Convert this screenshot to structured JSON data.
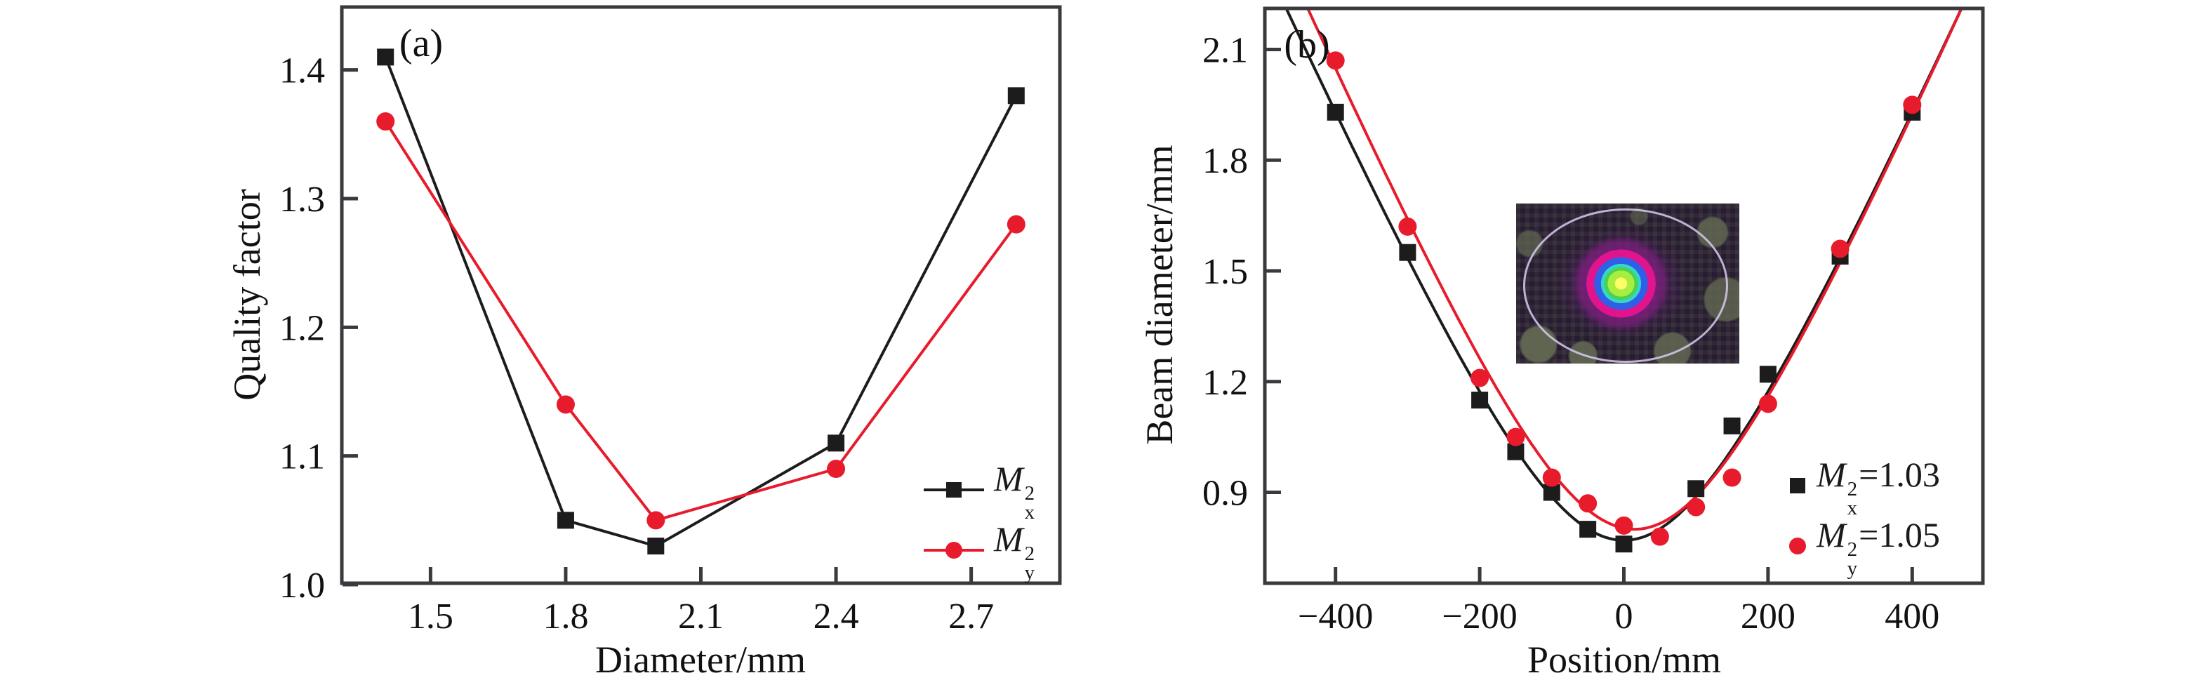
{
  "figure": {
    "panels": [
      "(a)",
      "(b)"
    ],
    "colors": {
      "black_series": "#1c1c1c",
      "red_series": "#e81b2c",
      "frame": "#3a3a3e",
      "background": "#ffffff"
    }
  },
  "chart_data": [
    {
      "type": "line",
      "panel_label": "(a)",
      "xlabel": "Diameter/mm",
      "ylabel": "Quality factor",
      "xlim": [
        1.3,
        2.9
      ],
      "ylim": [
        1.0,
        1.45
      ],
      "xticks": [
        1.5,
        1.8,
        2.1,
        2.4,
        2.7
      ],
      "yticks": [
        1.0,
        1.1,
        1.2,
        1.3,
        1.4
      ],
      "grid": false,
      "legend_position": "lower right",
      "series": [
        {
          "name": "Mx2",
          "label": {
            "base": "M",
            "sup": "2",
            "sub": "x"
          },
          "color": "#1c1c1c",
          "marker": "square",
          "x": [
            1.4,
            1.8,
            2.0,
            2.4,
            2.8
          ],
          "y": [
            1.41,
            1.05,
            1.03,
            1.11,
            1.38
          ]
        },
        {
          "name": "My2",
          "label": {
            "base": "M",
            "sup": "2",
            "sub": "y"
          },
          "color": "#e81b2c",
          "marker": "circle",
          "x": [
            1.4,
            1.8,
            2.0,
            2.4,
            2.8
          ],
          "y": [
            1.36,
            1.14,
            1.05,
            1.09,
            1.28
          ]
        }
      ]
    },
    {
      "type": "scatter-fit",
      "panel_label": "(b)",
      "xlabel": "Position/mm",
      "ylabel": "Beam diameter/mm",
      "xlim": [
        -500,
        500
      ],
      "ylim": [
        0.65,
        2.215
      ],
      "xticks": [
        -400,
        -200,
        0,
        200,
        400
      ],
      "yticks": [
        0.9,
        1.2,
        1.5,
        1.8,
        2.1
      ],
      "grid": false,
      "legend_position": "lower right",
      "inset": {
        "description": "beam intensity profile with aperture circle"
      },
      "series": [
        {
          "name": "Mx2",
          "label": {
            "base": "M",
            "sup": "2",
            "sub": "x",
            "suffix": "=1.03"
          },
          "color": "#1c1c1c",
          "marker": "square",
          "x": [
            -400,
            -300,
            -200,
            -150,
            -100,
            -50,
            0,
            100,
            150,
            200,
            300,
            400
          ],
          "y": [
            1.93,
            1.55,
            1.15,
            1.01,
            0.9,
            0.8,
            0.76,
            0.91,
            1.08,
            1.22,
            1.54,
            1.93
          ],
          "fit": {
            "w0": 0.77,
            "z0": 0,
            "zR": 174
          }
        },
        {
          "name": "My2",
          "label": {
            "base": "M",
            "sup": "2",
            "sub": "y",
            "suffix": "=1.05"
          },
          "color": "#e81b2c",
          "marker": "circle",
          "x": [
            -400,
            -300,
            -200,
            -150,
            -100,
            -50,
            0,
            50,
            100,
            150,
            200,
            300,
            400
          ],
          "y": [
            2.07,
            1.62,
            1.21,
            1.05,
            0.94,
            0.87,
            0.81,
            0.78,
            0.86,
            0.94,
            1.14,
            1.56,
            1.95
          ],
          "fit": {
            "w0": 0.8,
            "z0": 15,
            "zR": 176
          }
        }
      ]
    }
  ]
}
